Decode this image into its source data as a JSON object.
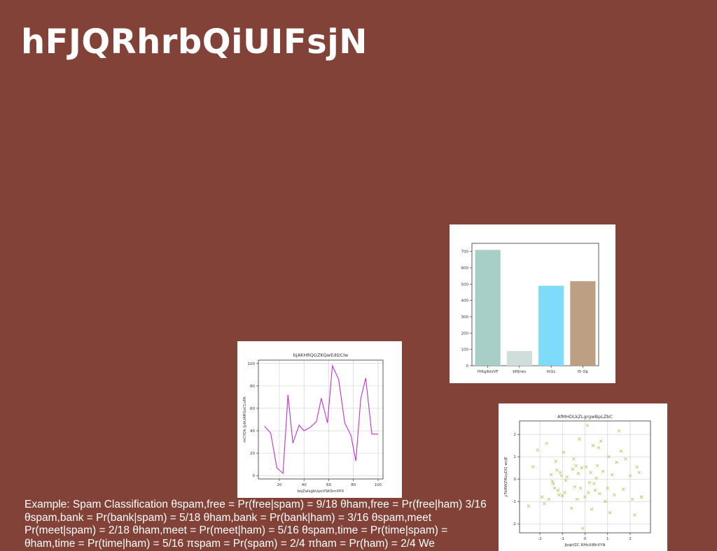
{
  "slide": {
    "title": "hFJQRhrbQiUIFsjN",
    "body": "Example: Spam Classification θspam,free = Pr(free|spam) = 9/18 θham,free = Pr(free|ham) 3/16 θspam,bank = Pr(bank|spam) = 5/18 θham,bank = Pr(bank|ham) = 3/16 θspam,meet Pr(meet|spam) = 2/18 θham,meet = Pr(meet|ham) = 5/16 θspam,time = Pr(time|spam) = θham,time = Pr(time|ham) = 5/16 πspam = Pr(spam) = 2/4 πham = Pr(ham) = 2/4 We"
  },
  "chart_data": [
    {
      "type": "bar",
      "title": "",
      "xlabel": "",
      "ylabel": "",
      "categories": [
        "fXKgIbtzVF",
        "bHJnev",
        "lIrGL",
        "t5 Op"
      ],
      "values": [
        710,
        90,
        490,
        518
      ],
      "colors": [
        "#a8cec8",
        "#cfdddb",
        "#7edcfa",
        "#bd9f84"
      ],
      "ylim": [
        0,
        750
      ],
      "yticks": [
        0,
        100,
        200,
        300,
        400,
        500,
        600,
        700
      ],
      "grid": false
    },
    {
      "type": "line",
      "title": "bjAKHRQGZKQwEdlzClw",
      "xlabel": "bqZaIsgbUpsVSKSmXPX",
      "ylabel": "mCYOk JybUARGoCLvFA",
      "x": [
        8,
        13,
        18,
        23,
        27,
        31,
        36,
        40,
        45,
        50,
        54,
        59,
        63,
        68,
        73,
        78,
        82,
        86,
        90,
        95,
        100
      ],
      "y": [
        44,
        38,
        7,
        2,
        72,
        29,
        45,
        40,
        43,
        48,
        69,
        47,
        98,
        86,
        47,
        36,
        13,
        69,
        87,
        37,
        37
      ],
      "xlim": [
        3,
        104
      ],
      "ylim": [
        -3,
        103
      ],
      "xticks": [
        20,
        40,
        60,
        80,
        100
      ],
      "yticks": [
        0,
        20,
        40,
        60,
        80,
        100
      ],
      "color": "#c030d0",
      "grid": true
    },
    {
      "type": "scatter",
      "title": "AfMHDLkZLgrgwBpLZbC",
      "xlabel": "JbqkfZC RMsXiBhXYN",
      "ylabel": "yTbRWZfKzyDQ wcjE",
      "marker": "x",
      "color": "#b5c25a",
      "xlim": [
        -2.9,
        2.9
      ],
      "ylim": [
        -2.4,
        2.6
      ],
      "xticks": [
        -2,
        -1,
        0,
        1,
        2
      ],
      "yticks": [
        -2,
        -1,
        0,
        1,
        2
      ],
      "grid": true,
      "x": [
        -2.5,
        -2.3,
        -2.1,
        -1.9,
        -1.8,
        -1.7,
        -1.6,
        -1.5,
        -1.45,
        -1.4,
        -1.35,
        -1.3,
        -1.25,
        -1.2,
        -1.15,
        -1.1,
        -1.05,
        -1.0,
        -0.95,
        -0.9,
        -0.85,
        -0.8,
        -0.6,
        -0.55,
        -0.5,
        -0.45,
        -0.4,
        -0.35,
        -0.3,
        -0.25,
        -0.2,
        -0.15,
        -0.1,
        0.0,
        0.05,
        0.1,
        0.15,
        0.2,
        0.25,
        0.3,
        0.35,
        0.4,
        0.45,
        0.5,
        0.55,
        0.6,
        0.65,
        0.7,
        0.8,
        0.9,
        1.0,
        1.05,
        1.1,
        1.2,
        1.3,
        1.4,
        1.5,
        1.6,
        1.7,
        1.8,
        2.0,
        2.1,
        2.2,
        2.3,
        2.4,
        2.5
      ],
      "y": [
        -1.2,
        0.55,
        1.3,
        -0.8,
        -1.1,
        1.6,
        -0.9,
        0.2,
        -0.1,
        -0.2,
        -0.4,
        0.8,
        0.4,
        -0.5,
        -0.7,
        0.3,
        0.15,
        -0.75,
        1.2,
        -0.6,
        -0.05,
        0.1,
        -1.3,
        0.45,
        0.9,
        -0.35,
        0.6,
        -0.9,
        0.25,
        1.8,
        -0.4,
        0.5,
        -2.2,
        -0.8,
        0.55,
        2.4,
        -0.6,
        -0.15,
        0.3,
        -1.35,
        1.5,
        -0.2,
        -0.5,
        0.05,
        0.6,
        1.4,
        -0.65,
        1.7,
        0.35,
        -1.0,
        -0.4,
        1.0,
        -1.5,
        0.2,
        -0.7,
        0.75,
        2.15,
        1.25,
        -0.45,
        0.9,
        0.15,
        -0.9,
        -1.6,
        0.55,
        0.3,
        -0.8
      ]
    }
  ]
}
